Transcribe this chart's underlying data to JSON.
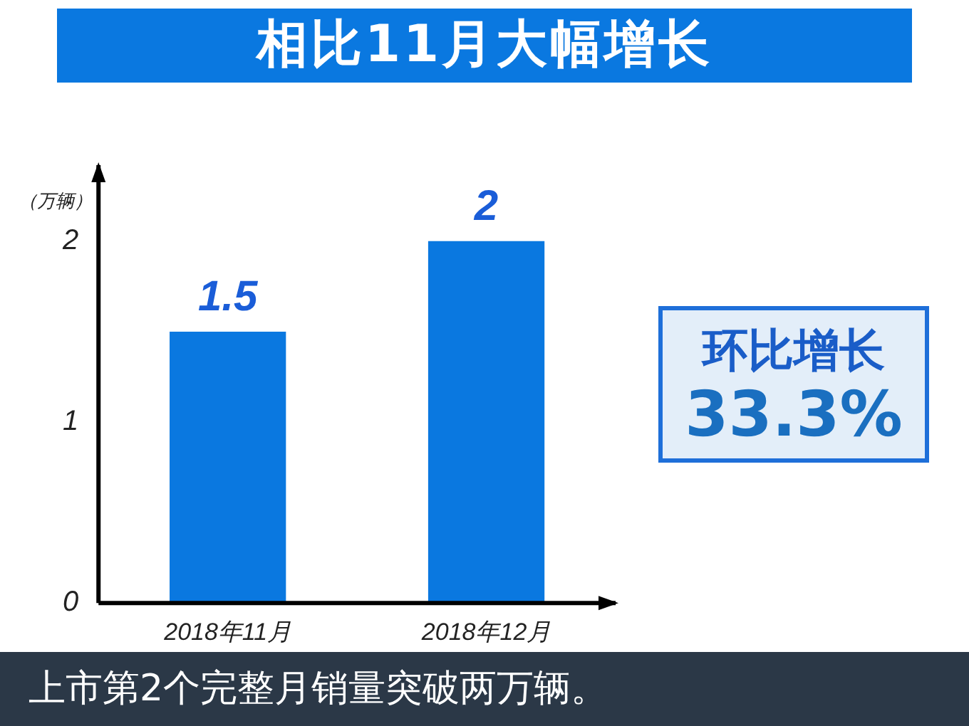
{
  "chart_data": {
    "type": "bar",
    "title": "相比11月大幅增长",
    "ylabel": "（万辆）",
    "categories": [
      "2018年11月",
      "2018年12月"
    ],
    "values": [
      1.5,
      2
    ],
    "color": "#0a78e0",
    "ylim": [
      0,
      2.42
    ],
    "yticks": [
      0,
      1,
      2
    ],
    "grid": false,
    "legend": false,
    "data_labels": true,
    "annotations": [
      "环比增长",
      "33.3%",
      "上市第2个完整月销量突破两万辆。"
    ]
  }
}
